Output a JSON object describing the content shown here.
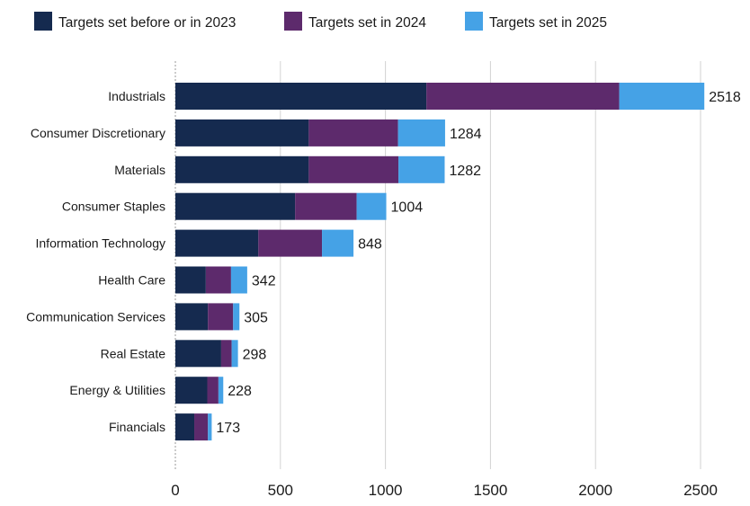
{
  "chart_data": {
    "type": "bar",
    "orientation": "horizontal",
    "stacked": true,
    "categories": [
      "Industrials",
      "Consumer Discretionary",
      "Materials",
      "Consumer Staples",
      "Information Technology",
      "Health Care",
      "Communication Services",
      "Real Estate",
      "Energy & Utilities",
      "Financials"
    ],
    "series": [
      {
        "name": "Targets set before or in 2023",
        "color": "#152a4f",
        "values": [
          1195,
          635,
          635,
          570,
          395,
          145,
          155,
          218,
          152,
          90
        ]
      },
      {
        "name": "Targets set in 2024",
        "color": "#5d2a6c",
        "values": [
          918,
          425,
          427,
          293,
          303,
          120,
          120,
          50,
          53,
          65
        ]
      },
      {
        "name": "Targets set in 2025",
        "color": "#45a2e6",
        "values": [
          405,
          224,
          220,
          141,
          150,
          77,
          30,
          30,
          23,
          18
        ]
      }
    ],
    "totals": [
      2518,
      1284,
      1282,
      1004,
      848,
      342,
      305,
      298,
      228,
      173
    ],
    "xlim": [
      0,
      2500
    ],
    "xticks": [
      0,
      500,
      1000,
      1500,
      2000,
      2500
    ],
    "grid": "vertical",
    "legend_position": "top",
    "title": "",
    "xlabel": "",
    "ylabel": ""
  }
}
